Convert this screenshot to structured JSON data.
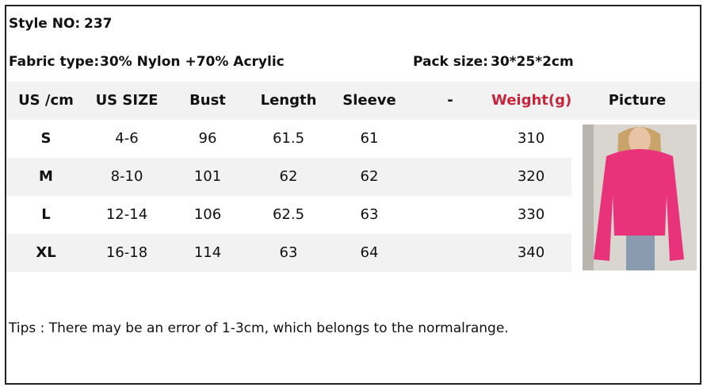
{
  "header": {
    "style_label": "Style NO:",
    "style_value": "237",
    "fabric_label": "Fabric type:",
    "fabric_value": "30% Nylon +70% Acrylic",
    "pack_label": "Pack size:",
    "pack_value": "30*25*2cm"
  },
  "table": {
    "columns": [
      "US /cm",
      "US SIZE",
      "Bust",
      "Length",
      "Sleeve",
      "-",
      "Weight(g)",
      "Picture"
    ],
    "rows": [
      [
        "S",
        "4-6",
        "96",
        "61.5",
        "61",
        "",
        "310"
      ],
      [
        "M",
        "8-10",
        "101",
        "62",
        "62",
        "",
        "320"
      ],
      [
        "L",
        "12-14",
        "106",
        "62.5",
        "63",
        "",
        "330"
      ],
      [
        "XL",
        "16-18",
        "114",
        "63",
        "64",
        "",
        "340"
      ]
    ]
  },
  "tips": "Tips : There may be an error of 1-3cm, which belongs to the normalrange."
}
